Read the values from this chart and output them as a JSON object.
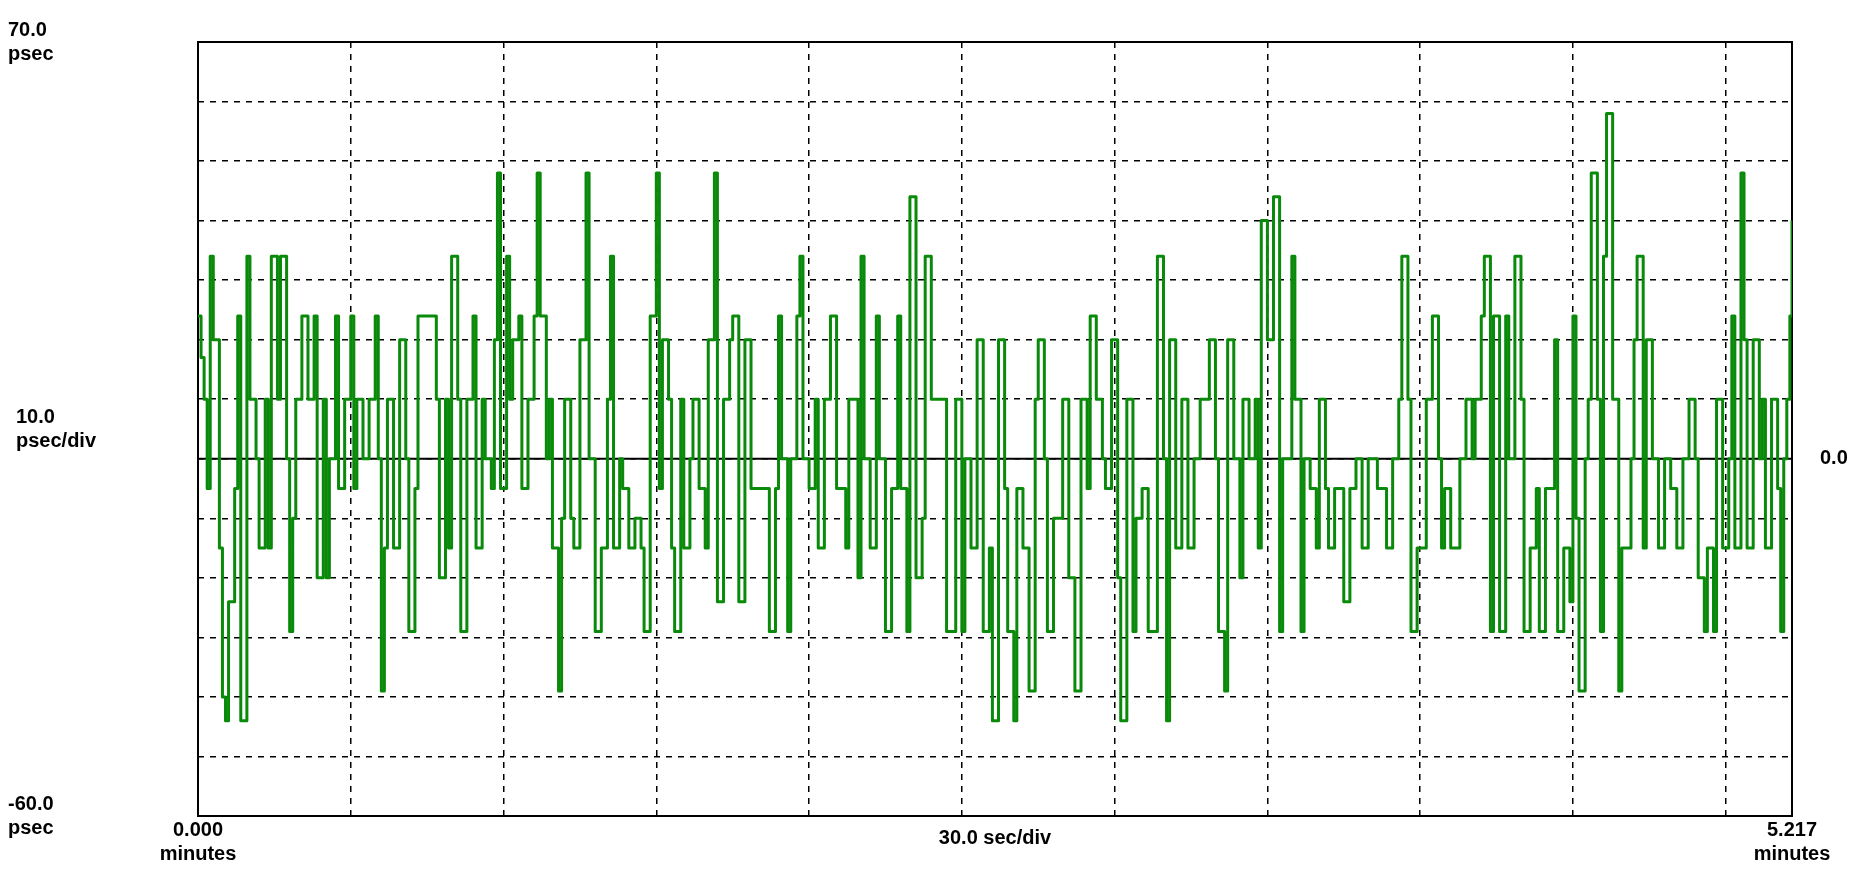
{
  "chart_data": {
    "type": "step",
    "xlabel": "30.0 sec/div",
    "ylabel": "10.0\npsec/div",
    "xlim": [
      0,
      5.217
    ],
    "ylim": [
      -60,
      70
    ],
    "xticks": [
      {
        "value": 0,
        "label": "0.000\nminutes"
      },
      {
        "value": 0.5,
        "label": null
      },
      {
        "value": 1,
        "label": null
      },
      {
        "value": 1.5,
        "label": null
      },
      {
        "value": 2,
        "label": null
      },
      {
        "value": 2.5,
        "label": null
      },
      {
        "value": 3,
        "label": null
      },
      {
        "value": 3.5,
        "label": null
      },
      {
        "value": 4,
        "label": null
      },
      {
        "value": 4.5,
        "label": null
      },
      {
        "value": 5,
        "label": null
      },
      {
        "value": 5.217,
        "label": "5.217\nminutes"
      }
    ],
    "yticks": [
      {
        "value": 70,
        "label": "70.0\npsec"
      },
      {
        "value": 60,
        "label": null
      },
      {
        "value": 50,
        "label": null
      },
      {
        "value": 40,
        "label": null
      },
      {
        "value": 30,
        "label": null
      },
      {
        "value": 20,
        "label": null
      },
      {
        "value": 10,
        "label": null
      },
      {
        "value": 0,
        "label": null
      },
      {
        "value": -10,
        "label": null
      },
      {
        "value": -20,
        "label": null
      },
      {
        "value": -30,
        "label": null
      },
      {
        "value": -40,
        "label": null
      },
      {
        "value": -50,
        "label": null
      },
      {
        "value": -60,
        "label": "-60.0\npsec"
      }
    ],
    "grid": true,
    "line_style": "solid",
    "marker": "none",
    "ref_lines": [
      {
        "axis": "y",
        "value": 0,
        "label": "0.0",
        "color": "#000000"
      }
    ],
    "series": [
      {
        "color": "#0a8a0a",
        "x": [
          0,
          0.01,
          0.02,
          0.03,
          0.04,
          0.05,
          0.07,
          0.08,
          0.09,
          0.1,
          0.12,
          0.13,
          0.14,
          0.16,
          0.17,
          0.19,
          0.2,
          0.22,
          0.23,
          0.24,
          0.26,
          0.27,
          0.29,
          0.3,
          0.31,
          0.32,
          0.34,
          0.36,
          0.38,
          0.39,
          0.41,
          0.42,
          0.43,
          0.45,
          0.46,
          0.48,
          0.5,
          0.51,
          0.52,
          0.54,
          0.56,
          0.58,
          0.59,
          0.6,
          0.61,
          0.62,
          0.64,
          0.66,
          0.68,
          0.69,
          0.71,
          0.72,
          0.74,
          0.76,
          0.78,
          0.79,
          0.81,
          0.82,
          0.83,
          0.85,
          0.86,
          0.88,
          0.9,
          0.91,
          0.93,
          0.94,
          0.96,
          0.97,
          0.98,
          0.99,
          1.01,
          1.02,
          1.03,
          1.05,
          1.06,
          1.08,
          1.1,
          1.11,
          1.12,
          1.14,
          1.15,
          1.16,
          1.18,
          1.19,
          1.2,
          1.22,
          1.23,
          1.25,
          1.27,
          1.28,
          1.3,
          1.32,
          1.34,
          1.35,
          1.36,
          1.38,
          1.39,
          1.41,
          1.43,
          1.45,
          1.46,
          1.48,
          1.5,
          1.51,
          1.52,
          1.54,
          1.55,
          1.56,
          1.58,
          1.59,
          1.61,
          1.62,
          1.64,
          1.66,
          1.67,
          1.69,
          1.7,
          1.72,
          1.74,
          1.75,
          1.77,
          1.79,
          1.8,
          1.81,
          1.87,
          1.89,
          1.9,
          1.91,
          1.93,
          1.94,
          1.96,
          1.97,
          1.98,
          2.0,
          2.02,
          2.03,
          2.05,
          2.07,
          2.09,
          2.12,
          2.13,
          2.16,
          2.17,
          2.18,
          2.2,
          2.22,
          2.23,
          2.25,
          2.27,
          2.29,
          2.3,
          2.32,
          2.33,
          2.35,
          2.37,
          2.38,
          2.4,
          2.45,
          2.48,
          2.5,
          2.51,
          2.53,
          2.55,
          2.57,
          2.59,
          2.6,
          2.62,
          2.64,
          2.65,
          2.67,
          2.68,
          2.7,
          2.72,
          2.74,
          2.75,
          2.77,
          2.78,
          2.8,
          2.83,
          2.85,
          2.87,
          2.89,
          2.91,
          2.92,
          2.94,
          2.96,
          2.97,
          2.99,
          3.01,
          3.02,
          3.04,
          3.06,
          3.07,
          3.09,
          3.11,
          3.14,
          3.16,
          3.17,
          3.18,
          3.2,
          3.22,
          3.24,
          3.26,
          3.28,
          3.31,
          3.33,
          3.34,
          3.36,
          3.37,
          3.39,
          3.41,
          3.42,
          3.44,
          3.46,
          3.47,
          3.48,
          3.5,
          3.52,
          3.54,
          3.55,
          3.58,
          3.59,
          3.61,
          3.62,
          3.64,
          3.66,
          3.67,
          3.69,
          3.7,
          3.72,
          3.75,
          3.77,
          3.79,
          3.81,
          3.83,
          3.86,
          3.89,
          3.91,
          3.93,
          3.94,
          3.96,
          3.97,
          3.99,
          4.02,
          4.04,
          4.06,
          4.07,
          4.08,
          4.1,
          4.13,
          4.15,
          4.17,
          4.18,
          4.2,
          4.21,
          4.23,
          4.24,
          4.26,
          4.28,
          4.29,
          4.31,
          4.33,
          4.34,
          4.36,
          4.38,
          4.39,
          4.41,
          4.44,
          4.45,
          4.47,
          4.49,
          4.5,
          4.51,
          4.52,
          4.54,
          4.55,
          4.56,
          4.58,
          4.59,
          4.6,
          4.61,
          4.63,
          4.65,
          4.66,
          4.69,
          4.7,
          4.71,
          4.73,
          4.74,
          4.76,
          4.78,
          4.8,
          4.82,
          4.84,
          4.86,
          4.88,
          4.9,
          4.91,
          4.93,
          4.94,
          4.96,
          4.97,
          4.99,
          5.01,
          5.02,
          5.03,
          5.05,
          5.06,
          5.07,
          5.09,
          5.11,
          5.12,
          5.13,
          5.15,
          5.17,
          5.18,
          5.19,
          5.2,
          5.21,
          5.217
        ],
        "values": [
          24,
          17,
          10,
          -5,
          34,
          20,
          -15,
          -40,
          -44,
          -24,
          -5,
          24,
          -44,
          34,
          10,
          0,
          -15,
          10,
          -15,
          34,
          10,
          34,
          0,
          -29,
          -10,
          10,
          24,
          10,
          24,
          -20,
          10,
          -20,
          0,
          24,
          -5,
          10,
          24,
          -5,
          10,
          0,
          10,
          24,
          0,
          -39,
          -15,
          10,
          -15,
          20,
          0,
          -29,
          -5,
          24,
          24,
          24,
          10,
          -20,
          10,
          -15,
          34,
          10,
          -29,
          10,
          24,
          -15,
          10,
          0,
          -5,
          20,
          48,
          -5,
          34,
          10,
          20,
          24,
          -5,
          10,
          24,
          48,
          24,
          0,
          10,
          -15,
          -39,
          -10,
          10,
          -10,
          -15,
          20,
          48,
          0,
          -29,
          -15,
          10,
          34,
          -15,
          0,
          -5,
          -15,
          -10,
          -15,
          -29,
          24,
          48,
          -5,
          20,
          10,
          -15,
          -29,
          10,
          -15,
          0,
          10,
          -5,
          -15,
          20,
          48,
          -24,
          10,
          20,
          24,
          -24,
          20,
          20,
          -5,
          -29,
          -5,
          24,
          0,
          -29,
          0,
          24,
          34,
          0,
          -5,
          10,
          -15,
          10,
          24,
          -5,
          -15,
          10,
          -20,
          34,
          0,
          -15,
          24,
          0,
          -29,
          -5,
          24,
          -5,
          -29,
          44,
          -20,
          -10,
          34,
          10,
          -29,
          10,
          -29,
          0,
          -15,
          20,
          -29,
          -15,
          -44,
          20,
          -5,
          -29,
          -44,
          -5,
          -15,
          -39,
          10,
          20,
          0,
          -29,
          -10,
          10,
          -20,
          -39,
          10,
          -5,
          24,
          10,
          0,
          -5,
          20,
          -20,
          -44,
          10,
          -29,
          -10,
          -5,
          -29,
          34,
          0,
          -44,
          20,
          -15,
          10,
          -15,
          0,
          10,
          20,
          0,
          -29,
          -39,
          20,
          0,
          -20,
          10,
          0,
          10,
          -15,
          40,
          20,
          44,
          -29,
          0,
          34,
          10,
          -29,
          0,
          -5,
          -15,
          10,
          -5,
          -15,
          -5,
          -24,
          -5,
          0,
          -15,
          0,
          -5,
          -15,
          0,
          10,
          34,
          10,
          -29,
          -15,
          10,
          24,
          0,
          -15,
          -5,
          -15,
          0,
          10,
          0,
          10,
          24,
          34,
          -29,
          24,
          -29,
          24,
          0,
          34,
          10,
          -29,
          -15,
          -5,
          -29,
          -5,
          20,
          -29,
          -15,
          -24,
          24,
          -10,
          -39,
          0,
          10,
          48,
          10,
          -29,
          34,
          58,
          10,
          -39,
          -15,
          0,
          20,
          34,
          -15,
          20,
          0,
          -15,
          0,
          -5,
          -15,
          0,
          10,
          0,
          -20,
          -29,
          -15,
          -29,
          10,
          -15,
          0,
          24,
          -15,
          48,
          20,
          -15,
          20,
          0,
          10,
          -15,
          10,
          -5,
          -29,
          0,
          10,
          24,
          40
        ]
      }
    ]
  }
}
